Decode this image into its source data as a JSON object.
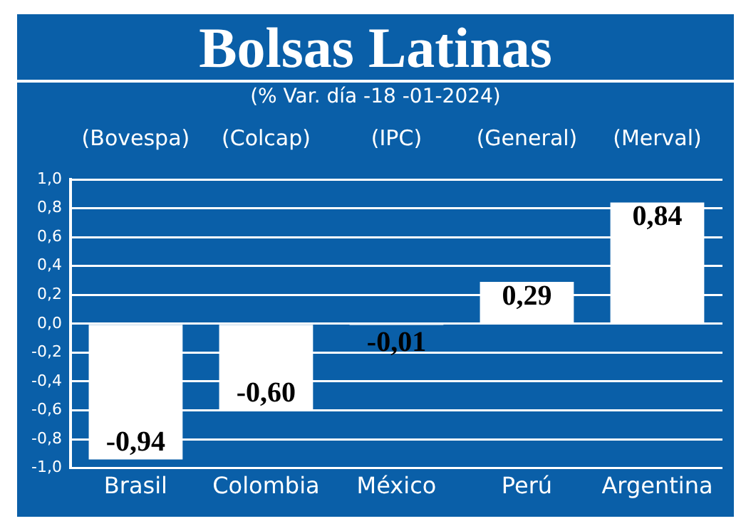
{
  "chart_data": {
    "type": "bar",
    "title": "Bolsas Latinas",
    "subtitle": "(% Var. día -18 -01-2024)",
    "categories": [
      "Brasil",
      "Colombia",
      "México",
      "Perú",
      "Argentina"
    ],
    "values": [
      -0.94,
      -0.6,
      -0.01,
      0.29,
      0.84
    ],
    "value_labels": [
      "-0,94",
      "-0,60",
      "-0,01",
      "0,29",
      "0,84"
    ],
    "color": "#ffffff",
    "annotations": [
      "(Bovespa)",
      "(Colcap)",
      "(IPC)",
      "(General)",
      "(Merval)"
    ],
    "ylim": [
      -1,
      1
    ],
    "yticks": [
      {
        "value": -1,
        "label": "-1,0"
      },
      {
        "value": -0.8,
        "label": "-0,8"
      },
      {
        "value": -0.6,
        "label": "-0,6"
      },
      {
        "value": -0.4,
        "label": "-0,4"
      },
      {
        "value": -0.2,
        "label": "-0,2"
      },
      {
        "value": 0,
        "label": "0,0"
      },
      {
        "value": 0.2,
        "label": "0,2"
      },
      {
        "value": 0.4,
        "label": "0,4"
      },
      {
        "value": 0.6,
        "label": "0,6"
      },
      {
        "value": 0.8,
        "label": "0,8"
      },
      {
        "value": 1,
        "label": "1,0"
      }
    ],
    "grid": "y"
  }
}
